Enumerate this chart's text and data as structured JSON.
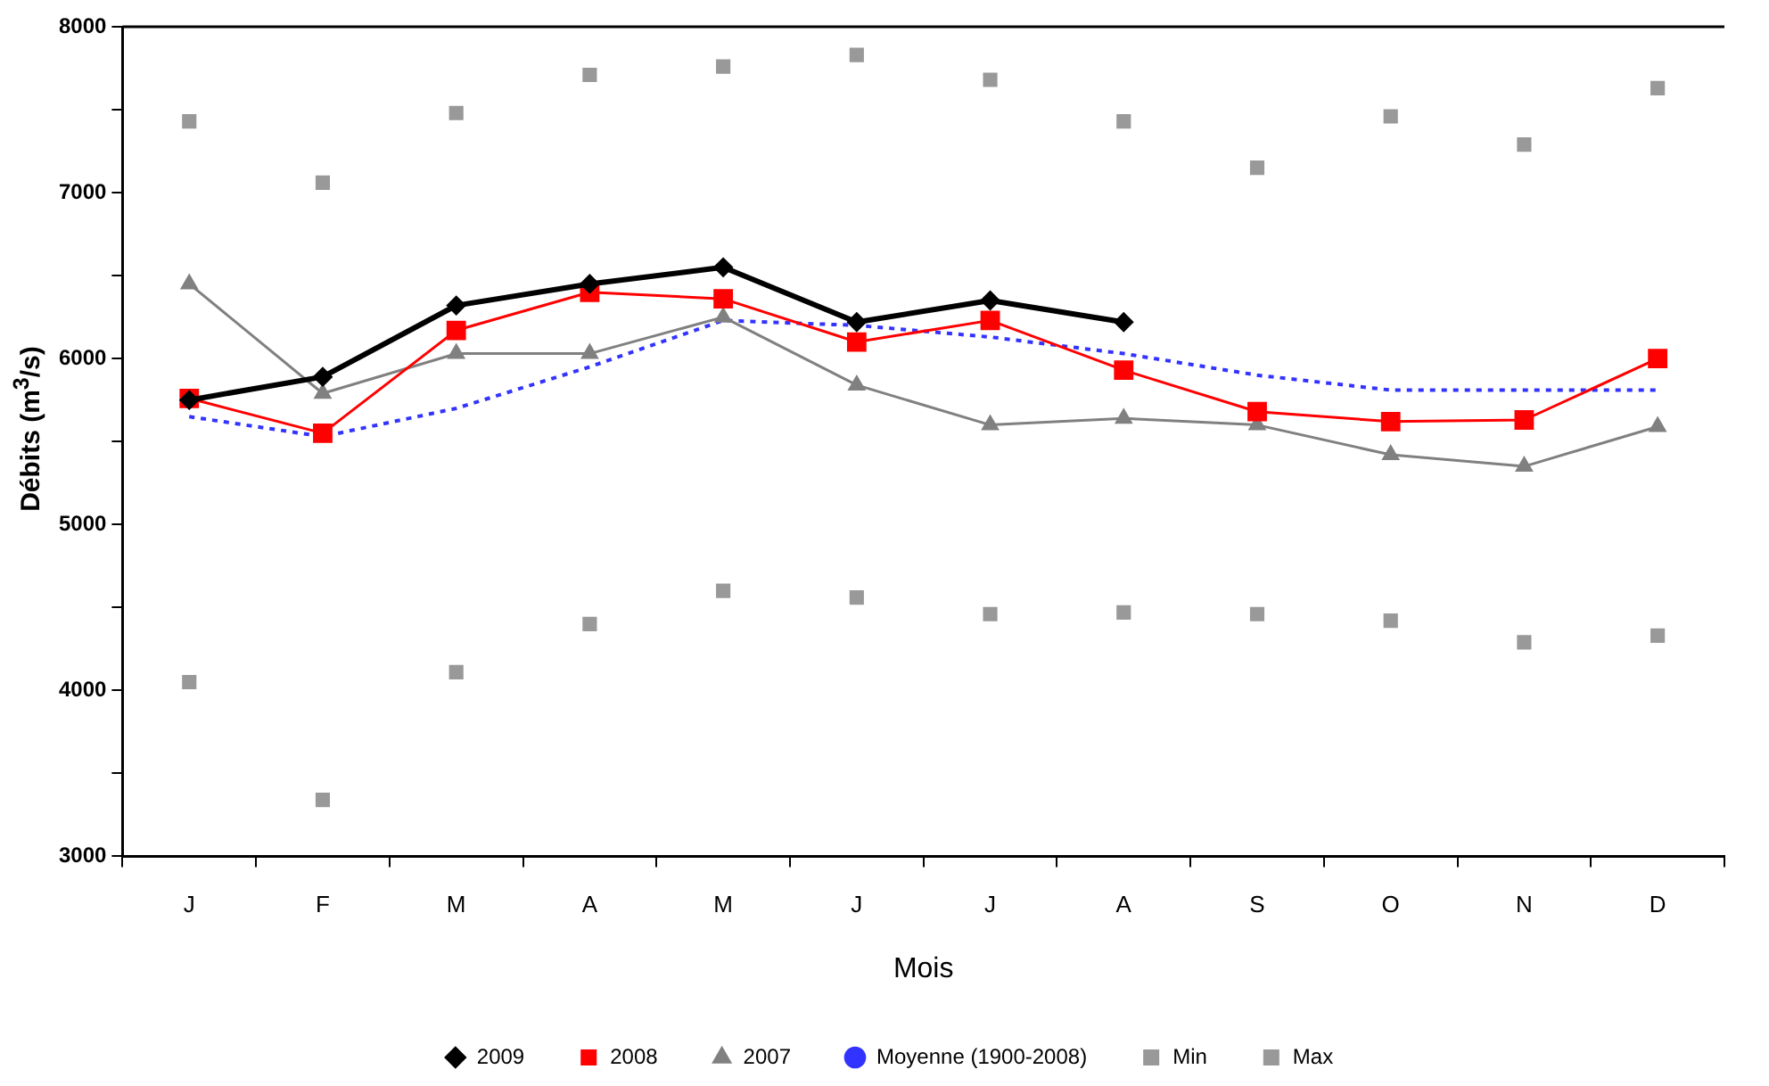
{
  "chart_data": {
    "type": "line",
    "xlabel": "Mois",
    "ylabel": "Débits (m$^{3}$/s)",
    "categories": [
      "J",
      "F",
      "M",
      "A",
      "M",
      "J",
      "J",
      "A",
      "S",
      "O",
      "N",
      "D"
    ],
    "ylim": [
      3000,
      8000
    ],
    "yticks": [
      3000,
      {
        "value": 3500,
        "label": null
      },
      4000,
      {
        "value": 4500,
        "label": null
      },
      5000,
      {
        "value": 5500,
        "label": null
      },
      6000,
      {
        "value": 6500,
        "label": null
      },
      7000,
      {
        "value": 7500,
        "label": null
      },
      8000
    ],
    "grid": false,
    "legend": "bottom",
    "series": [
      {
        "name": "2009",
        "color": "#000000",
        "marker": "diamond",
        "values": [
          5750,
          5890,
          6320,
          6450,
          6550,
          6220,
          6350,
          6220,
          null,
          null,
          null,
          null
        ]
      },
      {
        "name": "2008",
        "color": "#ff0000",
        "marker": "square",
        "values": [
          5760,
          5550,
          6170,
          6400,
          6360,
          6100,
          6230,
          5930,
          5680,
          5620,
          5630,
          6000
        ]
      },
      {
        "name": "2007",
        "color": "#808080",
        "marker": "triangle",
        "values": [
          6450,
          5790,
          6030,
          6030,
          6250,
          5840,
          5600,
          5640,
          5600,
          5420,
          5350,
          5590
        ]
      },
      {
        "name": "Moyenne (1900-2008)",
        "color": "#3333ff",
        "marker": "none",
        "line_style": "dotted",
        "values": [
          5650,
          5530,
          5700,
          5950,
          6230,
          6200,
          6130,
          6030,
          5900,
          5810,
          5810,
          5810
        ]
      },
      {
        "name": "Min",
        "type": "scatter",
        "color": "#999999",
        "marker": "square",
        "values": [
          4050,
          3340,
          4110,
          4400,
          4600,
          4560,
          4460,
          4470,
          4460,
          4420,
          4290,
          4330
        ]
      },
      {
        "name": "Max",
        "type": "scatter",
        "color": "#999999",
        "marker": "square",
        "values": [
          7430,
          7060,
          7480,
          7710,
          7760,
          7830,
          7680,
          7430,
          7150,
          7460,
          7290,
          7630
        ]
      }
    ]
  }
}
